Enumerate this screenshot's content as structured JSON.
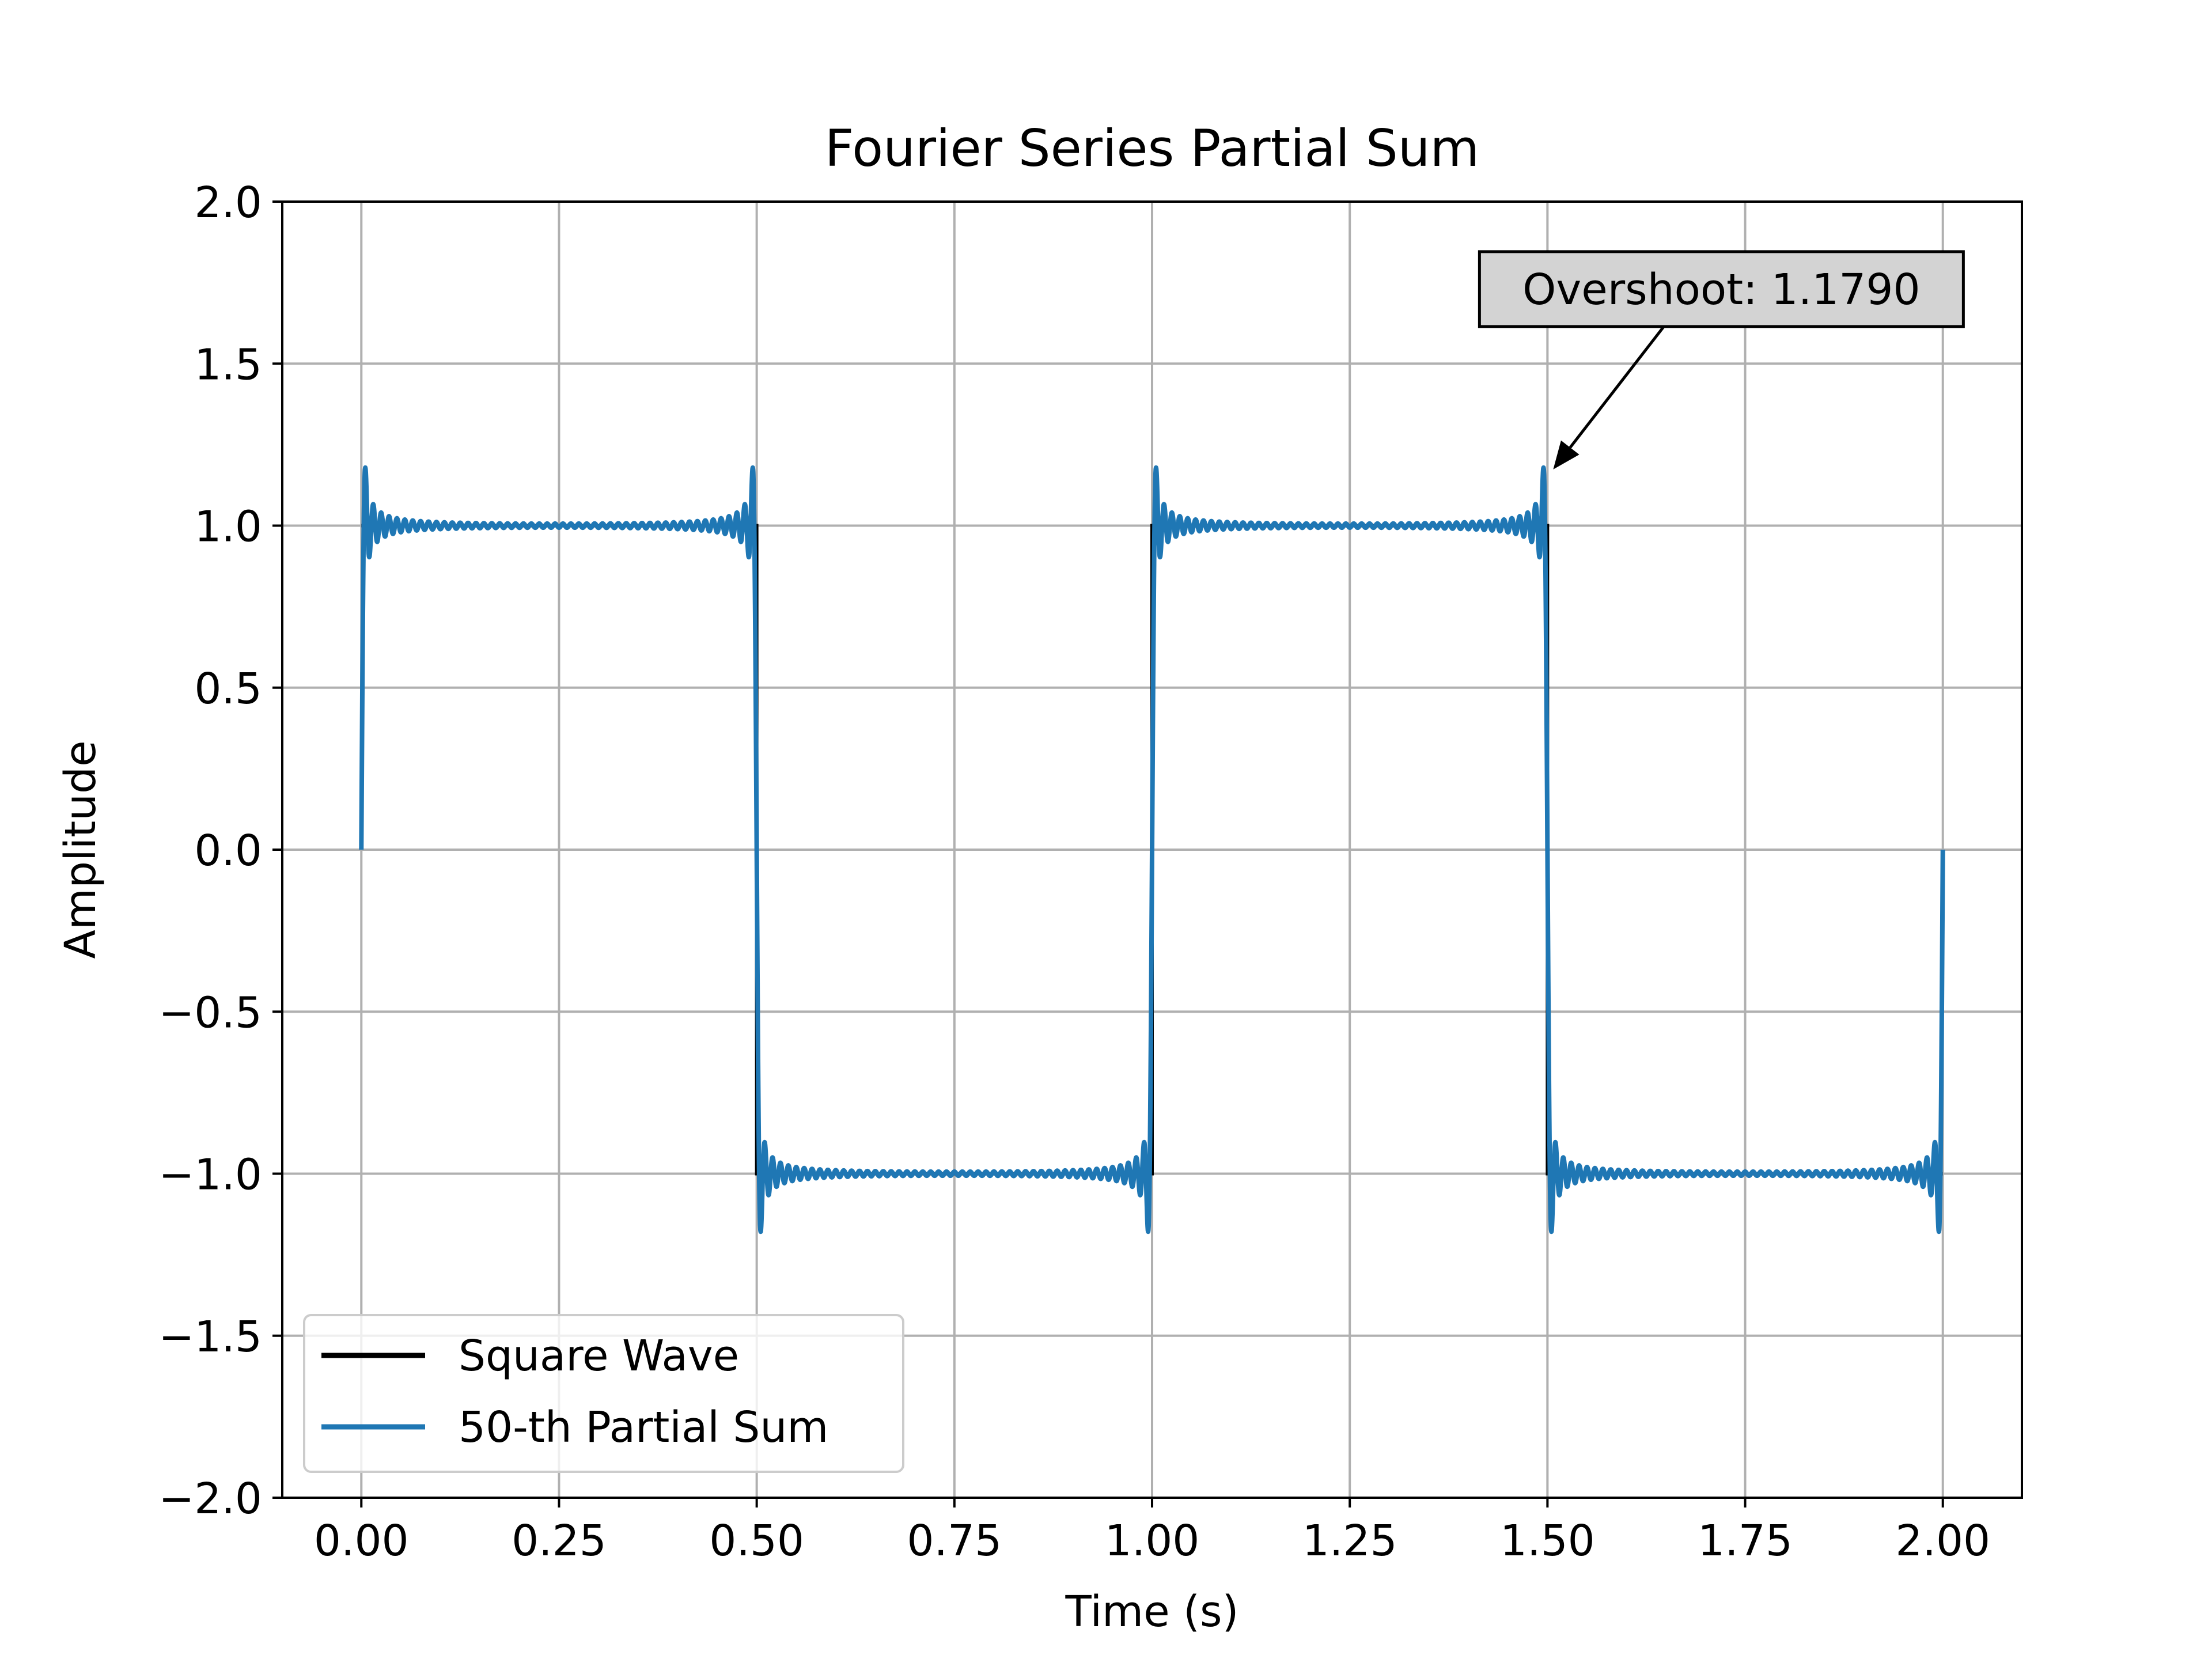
{
  "colors": {
    "square": "#000000",
    "partial": "#1f77b4",
    "grid": "#b0b0b0",
    "axes": "#000000",
    "annotation_bg": "#d3d3d3",
    "legend_border": "#cccccc"
  },
  "chart_data": {
    "type": "line",
    "title": "Fourier Series Partial Sum",
    "xlabel": "Time (s)",
    "ylabel": "Amplitude",
    "xlim": [
      -0.1,
      2.1
    ],
    "ylim": [
      -2.0,
      2.0
    ],
    "xticks": [
      0.0,
      0.25,
      0.5,
      0.75,
      1.0,
      1.25,
      1.5,
      1.75,
      2.0
    ],
    "xtick_labels": [
      "0.00",
      "0.25",
      "0.50",
      "0.75",
      "1.00",
      "1.25",
      "1.50",
      "1.75",
      "2.00"
    ],
    "yticks": [
      -2.0,
      -1.5,
      -1.0,
      -0.5,
      0.0,
      0.5,
      1.0,
      1.5,
      2.0
    ],
    "ytick_labels": [
      "−2.0",
      "−1.5",
      "−1.0",
      "−0.5",
      "0.0",
      "0.5",
      "1.0",
      "1.5",
      "2.0"
    ],
    "grid": true,
    "legend_position": "lower-left",
    "series": [
      {
        "name": "Square Wave",
        "kind": "square-wave",
        "period": 1.0,
        "amplitude": 1.0,
        "x_range": [
          0.0,
          2.0
        ],
        "x": [
          0.0,
          0.5,
          0.5,
          1.0,
          1.0,
          1.5,
          1.5,
          2.0
        ],
        "y": [
          1.0,
          1.0,
          -1.0,
          -1.0,
          1.0,
          1.0,
          -1.0,
          -1.0
        ]
      },
      {
        "name": "50-th Partial Sum",
        "kind": "fourier-partial-sum",
        "terms": 50,
        "period": 1.0,
        "x_range": [
          0.0,
          2.0
        ],
        "peak": 1.179
      }
    ],
    "annotations": [
      {
        "text": "Overshoot: 1.1790",
        "point": {
          "x": 1.5,
          "y": 1.179
        },
        "text_position": {
          "x": 1.72,
          "y": 1.73
        }
      }
    ]
  }
}
